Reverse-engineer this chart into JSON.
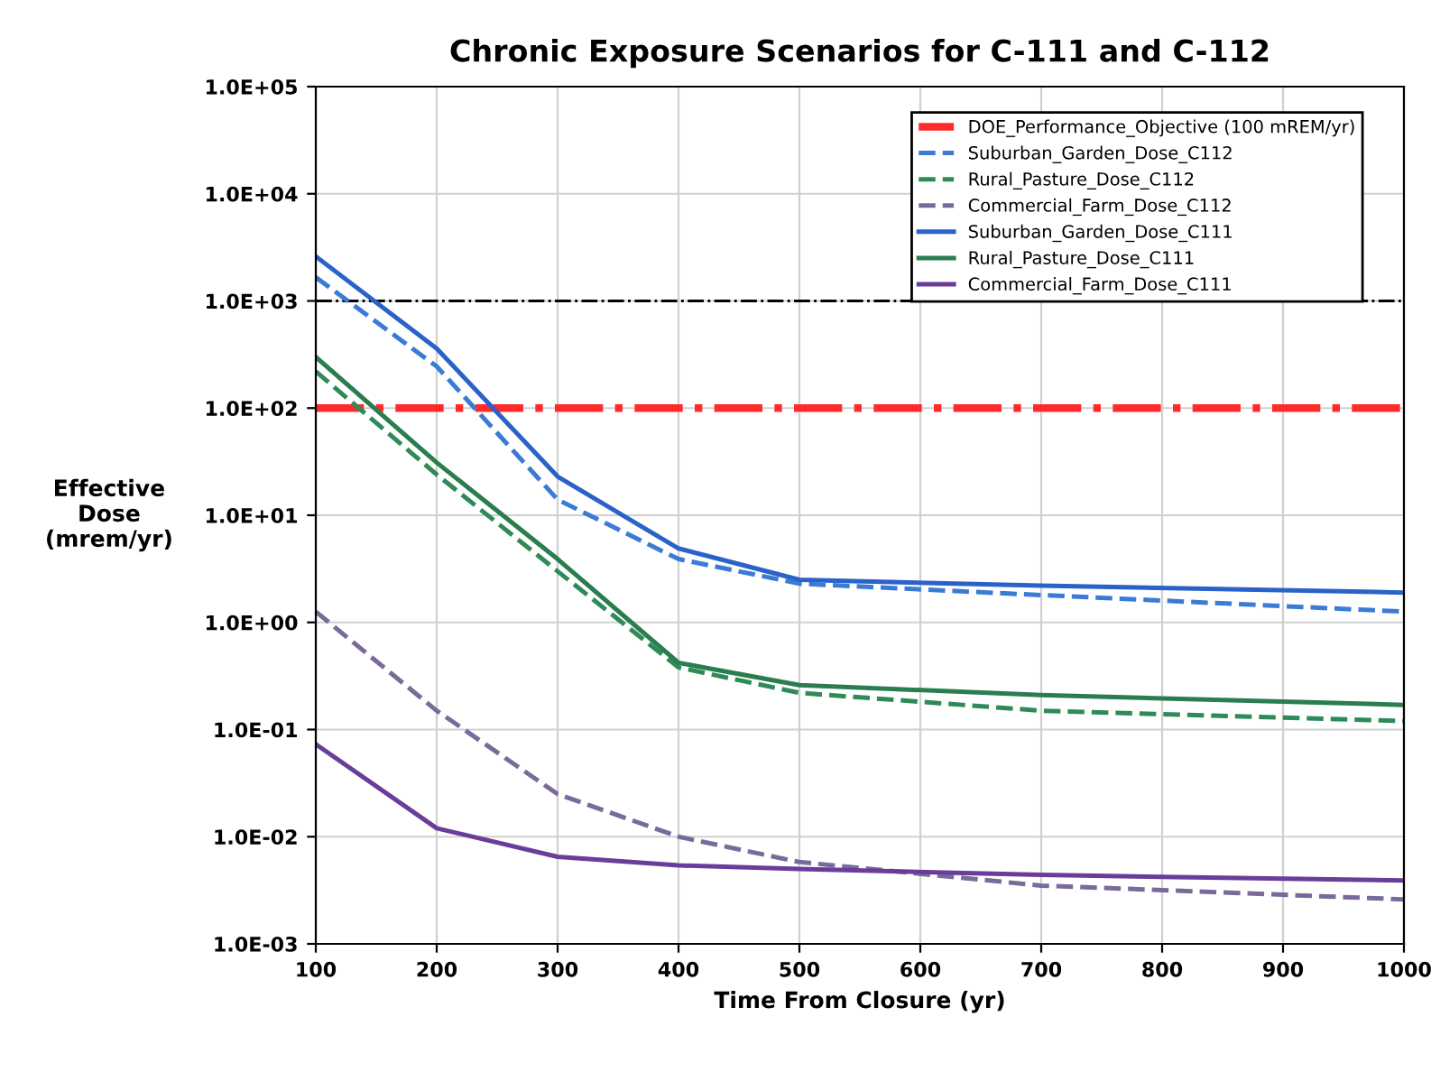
{
  "chart_data": {
    "type": "line",
    "title": "Chronic Exposure Scenarios for C-111 and C-112",
    "xlabel": "Time From Closure (yr)",
    "ylabel": "Effective\nDose\n(mrem/yr)",
    "log": "y",
    "grid": true,
    "legend": "top right",
    "xlim": [
      100,
      1000
    ],
    "xticks": [
      100,
      200,
      300,
      400,
      500,
      600,
      700,
      800,
      900,
      1000
    ],
    "ylim": [
      0.001,
      100000
    ],
    "yticks": [
      {
        "value": 0.001,
        "label": "1.0E-03"
      },
      {
        "value": 0.01,
        "label": "1.0E-02"
      },
      {
        "value": 0.1,
        "label": "1.0E-01"
      },
      {
        "value": 1,
        "label": "1.0E+00"
      },
      {
        "value": 10,
        "label": "1.0E+01"
      },
      {
        "value": 100,
        "label": "1.0E+02"
      },
      {
        "value": 1000,
        "label": "1.0E+03"
      },
      {
        "value": 10000,
        "label": "1.0E+04"
      },
      {
        "value": 100000,
        "label": "1.0E+05"
      }
    ],
    "ref_lines": [
      {
        "axis": "y",
        "value": 1000,
        "color": "#000000",
        "line_style": "dashdot"
      }
    ],
    "series": [
      {
        "name": "DOE_Performance_Objective (100 mREM/yr)",
        "color": "#ff2a2a",
        "line_style": "dashdot",
        "x": [
          100,
          1000
        ],
        "values": [
          100,
          100
        ]
      },
      {
        "name": "Suburban_Garden_Dose_C112",
        "color": "#3a7bd5",
        "line_style": "dashed",
        "x": [
          100,
          200,
          300,
          400,
          500,
          700,
          1000
        ],
        "values": [
          1660,
          245,
          14,
          3.9,
          2.3,
          1.8,
          1.26
        ]
      },
      {
        "name": "Rural_Pasture_Dose_C112",
        "color": "#2e8b57",
        "line_style": "dashed",
        "x": [
          100,
          200,
          300,
          400,
          500,
          700,
          1000
        ],
        "values": [
          220,
          24,
          3,
          0.38,
          0.22,
          0.15,
          0.12
        ]
      },
      {
        "name": "Commercial_Farm_Dose_C112",
        "color": "#7a6a9a",
        "line_style": "dashed",
        "x": [
          100,
          200,
          300,
          400,
          500,
          700,
          1000
        ],
        "values": [
          1.26,
          0.15,
          0.025,
          0.01,
          0.0058,
          0.0035,
          0.0026
        ]
      },
      {
        "name": "Suburban_Garden_Dose_C111",
        "color": "#2a62c9",
        "line_style": "solid",
        "x": [
          100,
          200,
          300,
          400,
          500,
          700,
          1000
        ],
        "values": [
          2600,
          360,
          23,
          4.9,
          2.5,
          2.2,
          1.9
        ]
      },
      {
        "name": "Rural_Pasture_Dose_C111",
        "color": "#2a7d4f",
        "line_style": "solid",
        "x": [
          100,
          200,
          300,
          400,
          500,
          700,
          1000
        ],
        "values": [
          300,
          31,
          3.9,
          0.42,
          0.26,
          0.21,
          0.17
        ]
      },
      {
        "name": "Commercial_Farm_Dose_C111",
        "color": "#6a3d9a",
        "line_style": "solid",
        "x": [
          100,
          200,
          300,
          400,
          500,
          700,
          1000
        ],
        "values": [
          0.073,
          0.012,
          0.0065,
          0.0054,
          0.005,
          0.0044,
          0.0039
        ]
      }
    ]
  }
}
